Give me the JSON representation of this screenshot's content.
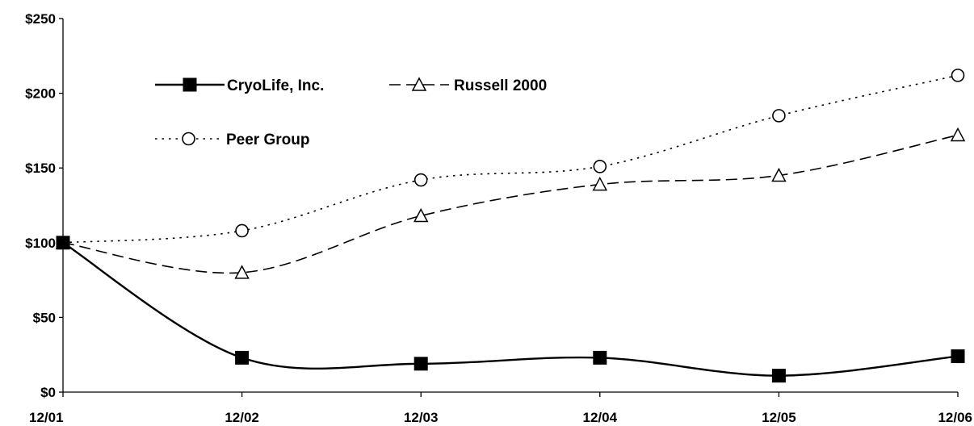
{
  "chart_data": {
    "type": "line",
    "title": "",
    "xlabel": "",
    "ylabel": "",
    "categories": [
      "12/01",
      "12/02",
      "12/03",
      "12/04",
      "12/05",
      "12/06"
    ],
    "y_ticks": [
      "$0",
      "$50",
      "$100",
      "$150",
      "$200",
      "$250"
    ],
    "ylim": [
      0,
      250
    ],
    "grid": false,
    "legend_position": "top-left",
    "series": [
      {
        "name": "CryoLife, Inc.",
        "values": [
          100,
          23,
          19,
          23,
          11,
          24
        ],
        "line_style": "solid",
        "marker": "filled-square",
        "color": "#000000"
      },
      {
        "name": "Russell 2000",
        "values": [
          100,
          80,
          118,
          139,
          145,
          172
        ],
        "line_style": "dashed",
        "marker": "open-triangle",
        "color": "#000000"
      },
      {
        "name": "Peer Group",
        "values": [
          100,
          108,
          142,
          151,
          185,
          212
        ],
        "line_style": "dotted",
        "marker": "open-circle",
        "color": "#000000"
      }
    ]
  }
}
